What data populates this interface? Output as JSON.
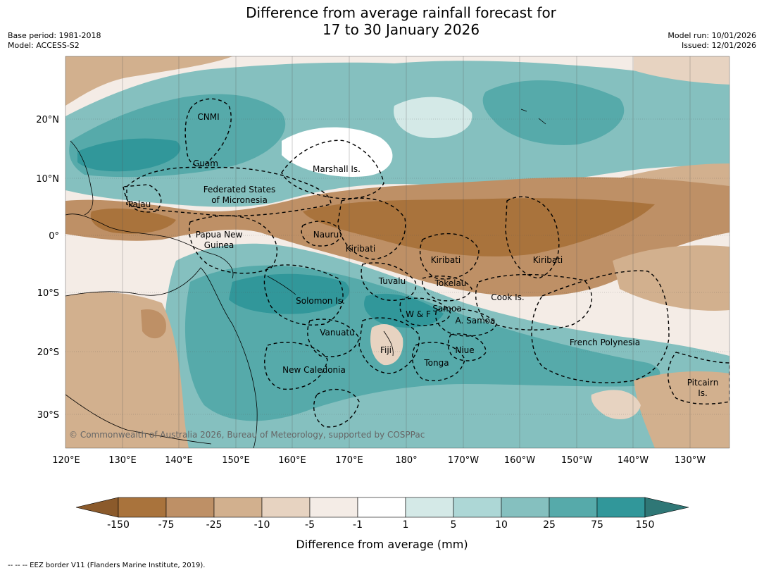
{
  "header": {
    "title_line1": "Difference from average rainfall forecast for",
    "title_line2": "17 to 30 January 2026",
    "base_period": "Base period: 1981-2018",
    "model": "Model: ACCESS-S2",
    "model_run": "Model run: 10/01/2026",
    "issued": "Issued: 12/01/2026"
  },
  "map": {
    "lon_labels": [
      "120°E",
      "130°E",
      "140°E",
      "150°E",
      "160°E",
      "170°E",
      "180°",
      "170°W",
      "160°W",
      "150°W",
      "140°W",
      "130°W"
    ],
    "lat_labels": [
      "20°N",
      "10°N",
      "0°",
      "10°S",
      "20°S",
      "30°S"
    ],
    "places": [
      {
        "name": "CNMI"
      },
      {
        "name": "Guam"
      },
      {
        "name": "Marshall Is."
      },
      {
        "name": "Federated States"
      },
      {
        "name": "of Micronesia"
      },
      {
        "name": "Palau"
      },
      {
        "name": "Papua New"
      },
      {
        "name": "Guinea"
      },
      {
        "name": "Nauru"
      },
      {
        "name": "Kiribati"
      },
      {
        "name": "Kiribati"
      },
      {
        "name": "Kiribati"
      },
      {
        "name": "Tuvalu"
      },
      {
        "name": "Tokelau"
      },
      {
        "name": "Cook Is."
      },
      {
        "name": "Solomon Is."
      },
      {
        "name": "Samoa"
      },
      {
        "name": "W & F"
      },
      {
        "name": "A. Samoa"
      },
      {
        "name": "Vanuatu"
      },
      {
        "name": "Fiji"
      },
      {
        "name": "Niue"
      },
      {
        "name": "French Polynesia"
      },
      {
        "name": "Tonga"
      },
      {
        "name": "New Caledonia"
      },
      {
        "name": "Pitcairn"
      },
      {
        "name": "Is."
      }
    ],
    "copyright": "© Commonwealth of Australia 2026, Bureau of Meteorology, supported by COSPPac"
  },
  "colorbar": {
    "title": "Difference from average (mm)",
    "ticks": [
      "-150",
      "-75",
      "-25",
      "-10",
      "-5",
      "-1",
      "1",
      "5",
      "10",
      "25",
      "75",
      "150"
    ],
    "colors": [
      "#8b5a2b",
      "#a9733c",
      "#be9066",
      "#d2b08e",
      "#e7d3c1",
      "#f4ece6",
      "#ffffff",
      "#d4e9e7",
      "#add7d6",
      "#85c0bf",
      "#56aaaa",
      "#31979a",
      "#2f7776"
    ]
  },
  "footnote": "--  --  -- EEZ border V11 (Flanders Marine Institute, 2019)."
}
